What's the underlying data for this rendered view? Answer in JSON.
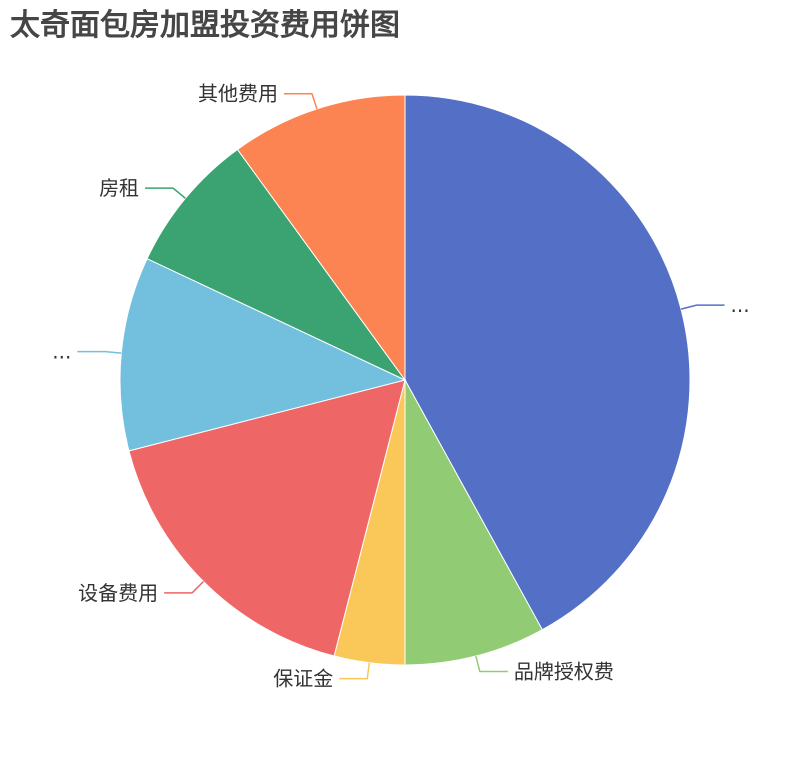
{
  "chart_data": {
    "type": "pie",
    "title": "太奇面包房加盟投资费用饼图",
    "start": "top",
    "direction": "clockwise",
    "slices": [
      {
        "label": "...",
        "value": 42,
        "color": "#5470c6"
      },
      {
        "label": "品牌授权费",
        "value": 8,
        "color": "#91cc75"
      },
      {
        "label": "保证金",
        "value": 4,
        "color": "#fac858"
      },
      {
        "label": "设备费用",
        "value": 17,
        "color": "#ee6666"
      },
      {
        "label": "...",
        "value": 11,
        "color": "#73c0de"
      },
      {
        "label": "房租",
        "value": 8,
        "color": "#3ba272"
      },
      {
        "label": "其他费用",
        "value": 10,
        "color": "#fc8452"
      }
    ]
  }
}
